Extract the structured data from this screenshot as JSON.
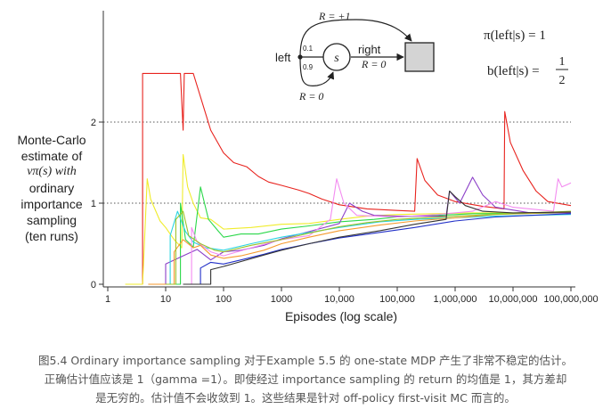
{
  "chart_data": {
    "type": "line",
    "x_scale": "log",
    "xlabel": "Episodes (log scale)",
    "xlim": [
      1,
      100000000
    ],
    "ylim": [
      0,
      2.2
    ],
    "x_ticks": [
      {
        "value": 1,
        "label": "1"
      },
      {
        "value": 10,
        "label": "10"
      },
      {
        "value": 100,
        "label": "100"
      },
      {
        "value": 1000,
        "label": "1000"
      },
      {
        "value": 10000,
        "label": "10,000"
      },
      {
        "value": 100000,
        "label": "100,000"
      },
      {
        "value": 1000000,
        "label": "1,000,000"
      },
      {
        "value": 10000000,
        "label": "10,000,000"
      },
      {
        "value": 100000000,
        "label": "100,000,000"
      }
    ],
    "y_ticks": [
      {
        "value": 0,
        "label": "0"
      },
      {
        "value": 1,
        "label": "1"
      },
      {
        "value": 2,
        "label": "2"
      }
    ],
    "ylabel_lines": [
      "Monte-Carlo",
      "estimate of",
      "vπ(s) with",
      "ordinary",
      "importance",
      "sampling",
      "(ten runs)"
    ],
    "reference_lines": [
      1,
      2
    ],
    "grid": false,
    "series": [
      {
        "color": "#e8231e",
        "points": [
          [
            4,
            0
          ],
          [
            4,
            2.6
          ],
          [
            4.5,
            2.6
          ],
          [
            5,
            2.6
          ],
          [
            18,
            2.6
          ],
          [
            20,
            1.9
          ],
          [
            21,
            2.6
          ],
          [
            30,
            2.6
          ],
          [
            60,
            1.9
          ],
          [
            100,
            1.62
          ],
          [
            150,
            1.5
          ],
          [
            250,
            1.45
          ],
          [
            400,
            1.33
          ],
          [
            600,
            1.26
          ],
          [
            1000,
            1.22
          ],
          [
            2000,
            1.16
          ],
          [
            3000,
            1.12
          ],
          [
            5000,
            1.05
          ],
          [
            10000,
            0.98
          ],
          [
            30000,
            0.93
          ],
          [
            100000,
            0.91
          ],
          [
            200000,
            0.9
          ],
          [
            220000,
            1.55
          ],
          [
            300000,
            1.28
          ],
          [
            500000,
            1.1
          ],
          [
            1000000,
            1.02
          ],
          [
            3000000,
            0.96
          ],
          [
            7000000,
            0.93
          ],
          [
            7200000,
            2.13
          ],
          [
            9000000,
            1.75
          ],
          [
            15000000,
            1.4
          ],
          [
            25000000,
            1.15
          ],
          [
            40000000,
            1.02
          ],
          [
            100000000,
            0.97
          ]
        ]
      },
      {
        "color": "#f0ec2b",
        "points": [
          [
            2,
            0
          ],
          [
            4,
            0
          ],
          [
            4.8,
            1.3
          ],
          [
            5.5,
            1.05
          ],
          [
            8,
            0.78
          ],
          [
            10,
            0.7
          ],
          [
            14,
            0.55
          ],
          [
            19,
            0.45
          ],
          [
            20,
            1.6
          ],
          [
            24,
            1.2
          ],
          [
            30,
            1.0
          ],
          [
            40,
            0.82
          ],
          [
            60,
            0.8
          ],
          [
            100,
            0.68
          ],
          [
            300,
            0.7
          ],
          [
            1000,
            0.74
          ],
          [
            3000,
            0.75
          ],
          [
            10000,
            0.8
          ],
          [
            30000,
            0.84
          ],
          [
            100000,
            0.86
          ],
          [
            500000,
            0.87
          ],
          [
            2000000,
            0.88
          ],
          [
            10000000,
            0.88
          ],
          [
            100000000,
            0.89
          ]
        ]
      },
      {
        "color": "#2bd84a",
        "points": [
          [
            7,
            0
          ],
          [
            18,
            0
          ],
          [
            18,
            1.0
          ],
          [
            22,
            0.55
          ],
          [
            30,
            0.46
          ],
          [
            40,
            1.2
          ],
          [
            55,
            0.8
          ],
          [
            80,
            0.66
          ],
          [
            100,
            0.58
          ],
          [
            200,
            0.62
          ],
          [
            400,
            0.62
          ],
          [
            1000,
            0.68
          ],
          [
            3000,
            0.72
          ],
          [
            10000,
            0.77
          ],
          [
            40000,
            0.8
          ],
          [
            100000,
            0.83
          ],
          [
            500000,
            0.85
          ],
          [
            2000000,
            0.87
          ],
          [
            10000000,
            0.87
          ],
          [
            100000000,
            0.88
          ]
        ]
      },
      {
        "color": "#8b3fc8",
        "points": [
          [
            10,
            0
          ],
          [
            10,
            0.25
          ],
          [
            20,
            0.35
          ],
          [
            35,
            0.43
          ],
          [
            60,
            0.3
          ],
          [
            100,
            0.4
          ],
          [
            200,
            0.42
          ],
          [
            500,
            0.48
          ],
          [
            1000,
            0.56
          ],
          [
            3000,
            0.65
          ],
          [
            10000,
            0.75
          ],
          [
            15000,
            1.0
          ],
          [
            25000,
            0.9
          ],
          [
            40000,
            0.85
          ],
          [
            100000,
            0.84
          ],
          [
            300000,
            0.84
          ],
          [
            700000,
            0.84
          ],
          [
            800000,
            1.15
          ],
          [
            1200000,
            1.0
          ],
          [
            2000000,
            1.32
          ],
          [
            3000000,
            1.1
          ],
          [
            5000000,
            0.95
          ],
          [
            20000000,
            0.88
          ],
          [
            100000000,
            0.88
          ]
        ]
      },
      {
        "color": "#2ad4e0",
        "points": [
          [
            10,
            0
          ],
          [
            12,
            0
          ],
          [
            12,
            0.6
          ],
          [
            16,
            0.9
          ],
          [
            22,
            0.65
          ],
          [
            30,
            0.52
          ],
          [
            50,
            0.45
          ],
          [
            100,
            0.42
          ],
          [
            300,
            0.5
          ],
          [
            1000,
            0.58
          ],
          [
            3000,
            0.64
          ],
          [
            10000,
            0.7
          ],
          [
            50000,
            0.77
          ],
          [
            200000,
            0.8
          ],
          [
            1000000,
            0.82
          ],
          [
            5000000,
            0.84
          ],
          [
            100000000,
            0.86
          ]
        ]
      },
      {
        "color": "#f38bf0",
        "points": [
          [
            20,
            0
          ],
          [
            28,
            0
          ],
          [
            28,
            0.7
          ],
          [
            35,
            0.52
          ],
          [
            60,
            0.4
          ],
          [
            100,
            0.35
          ],
          [
            300,
            0.45
          ],
          [
            1000,
            0.55
          ],
          [
            3000,
            0.6
          ],
          [
            7000,
            0.8
          ],
          [
            9000,
            1.3
          ],
          [
            12000,
            1.0
          ],
          [
            20000,
            0.85
          ],
          [
            100000,
            0.83
          ],
          [
            500000,
            0.86
          ],
          [
            2000000,
            0.9
          ],
          [
            5000000,
            1.02
          ],
          [
            10000000,
            0.95
          ],
          [
            50000000,
            0.9
          ],
          [
            60000000,
            1.3
          ],
          [
            70000000,
            1.2
          ],
          [
            100000000,
            1.25
          ]
        ]
      },
      {
        "color": "#2230c8",
        "points": [
          [
            20,
            0
          ],
          [
            40,
            0
          ],
          [
            40,
            0.2
          ],
          [
            60,
            0.27
          ],
          [
            100,
            0.25
          ],
          [
            200,
            0.3
          ],
          [
            500,
            0.37
          ],
          [
            1000,
            0.43
          ],
          [
            3000,
            0.5
          ],
          [
            10000,
            0.57
          ],
          [
            50000,
            0.64
          ],
          [
            200000,
            0.7
          ],
          [
            1000000,
            0.78
          ],
          [
            5000000,
            0.83
          ],
          [
            20000000,
            0.85
          ],
          [
            100000000,
            0.87
          ]
        ]
      },
      {
        "color": "#f59a2e",
        "points": [
          [
            5,
            0
          ],
          [
            14,
            0
          ],
          [
            14,
            0.4
          ],
          [
            20,
            0.55
          ],
          [
            30,
            0.45
          ],
          [
            40,
            0.48
          ],
          [
            60,
            0.36
          ],
          [
            100,
            0.32
          ],
          [
            200,
            0.35
          ],
          [
            500,
            0.42
          ],
          [
            1000,
            0.5
          ],
          [
            3000,
            0.58
          ],
          [
            10000,
            0.66
          ],
          [
            50000,
            0.73
          ],
          [
            200000,
            0.78
          ],
          [
            1000000,
            0.82
          ],
          [
            5000000,
            0.86
          ],
          [
            100000000,
            0.89
          ]
        ]
      },
      {
        "color": "#9cc12a",
        "points": [
          [
            10,
            0
          ],
          [
            15,
            0
          ],
          [
            15,
            0.8
          ],
          [
            20,
            0.9
          ],
          [
            25,
            0.6
          ],
          [
            40,
            0.5
          ],
          [
            70,
            0.42
          ],
          [
            100,
            0.4
          ],
          [
            300,
            0.48
          ],
          [
            1000,
            0.55
          ],
          [
            3000,
            0.63
          ],
          [
            10000,
            0.71
          ],
          [
            30000,
            0.76
          ],
          [
            100000,
            0.8
          ],
          [
            1000000,
            0.84
          ],
          [
            10000000,
            0.87
          ],
          [
            100000000,
            0.9
          ]
        ]
      },
      {
        "color": "#333333",
        "points": [
          [
            20,
            0
          ],
          [
            60,
            0
          ],
          [
            60,
            0.18
          ],
          [
            100,
            0.22
          ],
          [
            200,
            0.28
          ],
          [
            500,
            0.36
          ],
          [
            1000,
            0.42
          ],
          [
            3000,
            0.5
          ],
          [
            10000,
            0.58
          ],
          [
            50000,
            0.66
          ],
          [
            200000,
            0.74
          ],
          [
            700000,
            0.8
          ],
          [
            800000,
            1.15
          ],
          [
            1000000,
            1.08
          ],
          [
            1500000,
            0.97
          ],
          [
            3000000,
            0.9
          ],
          [
            10000000,
            0.88
          ],
          [
            100000000,
            0.89
          ]
        ]
      }
    ],
    "inset": {
      "state": "s",
      "left": "left",
      "right": "right",
      "p_top": "0.1",
      "p_bottom": "0.9",
      "r_top": "R = +1",
      "r_right": "R = 0",
      "r_bottom": "R = 0"
    },
    "policy_pi": "π(left|s) = 1",
    "policy_b_lhs": "b(left|s) =",
    "policy_b_num": "1",
    "policy_b_den": "2"
  },
  "caption_lines": [
    "图5.4 Ordinary importance sampling 对于Example 5.5 的 one-state MDP 产生了非常不稳定的估计。",
    "正确估计值应该是 1（gamma =1）。即使经过 importance sampling 的 return 的均值是 1，其方差却",
    "是无穷的。估计值不会收敛到 1。这些结果是针对 off-policy first-visit MC 而言的。"
  ]
}
